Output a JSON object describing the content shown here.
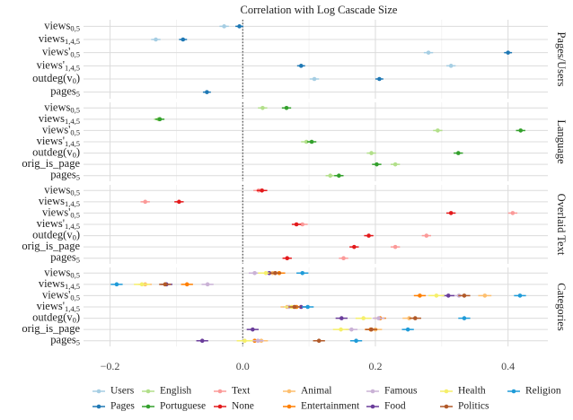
{
  "chart_data": {
    "type": "dot",
    "title": "Correlation with Log Cascade Size",
    "xlim": [
      -0.24,
      0.46
    ],
    "xticks": [
      {
        "value": -0.2,
        "label": "−0.2"
      },
      {
        "value": 0,
        "label": "0.0"
      },
      0.2,
      0.4
    ],
    "xminor": [
      -0.1,
      0.1,
      0.3
    ],
    "vline": 0,
    "grid": true,
    "legend": "bottom",
    "facets": [
      {
        "title": "Pages/Users",
        "rows": [
          {
            "name": "views",
            "sub": "0,5"
          },
          {
            "name": "views",
            "sub": "1,4,5"
          },
          {
            "name": "views'",
            "sub": "0,5"
          },
          {
            "name": "views'",
            "sub": "1,4,5"
          },
          {
            "name": "outdeg(v",
            "sub": "0",
            "tail": ")"
          },
          {
            "name": "pages",
            "sub": "5"
          }
        ]
      },
      {
        "title": "Language",
        "rows": [
          {
            "name": "views",
            "sub": "0,5"
          },
          {
            "name": "views",
            "sub": "1,4,5"
          },
          {
            "name": "views'",
            "sub": "0,5"
          },
          {
            "name": "views'",
            "sub": "1,4,5"
          },
          {
            "name": "outdeg(v",
            "sub": "0",
            "tail": ")"
          },
          {
            "name": "orig_is_page"
          },
          {
            "name": "pages",
            "sub": "5"
          }
        ]
      },
      {
        "title": "Overlaid Text",
        "rows": [
          {
            "name": "views",
            "sub": "0,5"
          },
          {
            "name": "views",
            "sub": "1,4,5"
          },
          {
            "name": "views'",
            "sub": "0,5"
          },
          {
            "name": "views'",
            "sub": "1,4,5"
          },
          {
            "name": "outdeg(v",
            "sub": "0",
            "tail": ")"
          },
          {
            "name": "orig_is_page"
          },
          {
            "name": "pages",
            "sub": "5"
          }
        ]
      },
      {
        "title": "Categories",
        "rows": [
          {
            "name": "views",
            "sub": "0,5"
          },
          {
            "name": "views",
            "sub": "1,4,5"
          },
          {
            "name": "views'",
            "sub": "0,5"
          },
          {
            "name": "views'",
            "sub": "1,4,5"
          },
          {
            "name": "outdeg(v",
            "sub": "0",
            "tail": ")"
          },
          {
            "name": "orig_is_page"
          },
          {
            "name": "pages",
            "sub": "5"
          }
        ]
      }
    ],
    "series": [
      {
        "name": "Users",
        "color": "#a6cee3",
        "facet": 0,
        "values": [
          -0.028,
          -0.131,
          0.28,
          0.314,
          0.108,
          null
        ],
        "errors": [
          0.007,
          0.007,
          0.007,
          0.007,
          0.007,
          null
        ]
      },
      {
        "name": "Pages",
        "color": "#1f78b4",
        "facet": 0,
        "values": [
          -0.005,
          -0.09,
          0.4,
          0.088,
          0.206,
          -0.054
        ],
        "errors": [
          0.006,
          0.006,
          0.006,
          0.006,
          0.006,
          0.006
        ]
      },
      {
        "name": "English",
        "color": "#b2df8a",
        "facet": 1,
        "values": [
          0.03,
          -0.127,
          0.294,
          0.096,
          0.194,
          0.23,
          0.132
        ],
        "errors": [
          0.007,
          0.007,
          0.007,
          0.008,
          0.007,
          0.007,
          0.007
        ]
      },
      {
        "name": "Portuguese",
        "color": "#33a02c",
        "facet": 1,
        "values": [
          0.066,
          -0.125,
          0.419,
          0.104,
          0.325,
          0.202,
          0.145
        ],
        "errors": [
          0.007,
          0.007,
          0.007,
          0.007,
          0.007,
          0.007,
          0.007
        ]
      },
      {
        "name": "Text",
        "color": "#fb9a99",
        "facet": 2,
        "values": [
          0.024,
          -0.147,
          0.407,
          0.09,
          0.277,
          0.23,
          0.152
        ],
        "errors": [
          0.008,
          0.007,
          0.007,
          0.008,
          0.007,
          0.007,
          0.007
        ]
      },
      {
        "name": "None",
        "color": "#e31a1c",
        "facet": 2,
        "values": [
          0.029,
          -0.096,
          0.314,
          0.081,
          0.19,
          0.168,
          0.067
        ],
        "errors": [
          0.008,
          0.007,
          0.007,
          0.007,
          0.007,
          0.007,
          0.007
        ]
      },
      {
        "name": "Animal",
        "color": "#fdbf6f",
        "facet": 3,
        "values": [
          0.045,
          -0.147,
          0.365,
          0.067,
          0.251,
          0.2,
          0.028
        ],
        "errors": [
          0.01,
          0.01,
          0.01,
          0.01,
          0.01,
          0.01,
          0.01
        ]
      },
      {
        "name": "Entertainment",
        "color": "#ff7f00",
        "facet": 3,
        "values": [
          0.055,
          -0.084,
          0.267,
          0.081,
          0.207,
          0.193,
          0.018
        ],
        "errors": [
          0.009,
          0.009,
          0.009,
          0.009,
          0.009,
          0.009,
          0.009
        ]
      },
      {
        "name": "Famous",
        "color": "#cab2d6",
        "facet": 3,
        "values": [
          0.018,
          -0.053,
          0.326,
          0.07,
          0.205,
          0.164,
          0.023
        ],
        "errors": [
          0.009,
          0.009,
          0.009,
          0.009,
          0.009,
          0.009,
          0.009
        ]
      },
      {
        "name": "Food",
        "color": "#6a3d9a",
        "facet": 3,
        "values": [
          0.04,
          -0.115,
          0.31,
          0.088,
          0.149,
          0.015,
          -0.061
        ],
        "errors": [
          0.009,
          0.009,
          0.009,
          0.009,
          0.009,
          0.009,
          0.009
        ]
      },
      {
        "name": "Health",
        "color": "#f5ef6a",
        "facet": 3,
        "values": [
          0.035,
          -0.152,
          0.292,
          0.074,
          0.182,
          0.148,
          0.003
        ],
        "errors": [
          0.012,
          0.012,
          0.012,
          0.012,
          0.012,
          0.012,
          0.012
        ]
      },
      {
        "name": "Politics",
        "color": "#b15928",
        "facet": 3,
        "values": [
          0.049,
          -0.117,
          0.334,
          0.078,
          0.26,
          0.194,
          0.115
        ],
        "errors": [
          0.009,
          0.009,
          0.009,
          0.009,
          0.009,
          0.009,
          0.009
        ]
      },
      {
        "name": "Religion",
        "color": "#1f9bd8",
        "facet": 3,
        "values": [
          0.09,
          -0.19,
          0.418,
          0.098,
          0.334,
          0.249,
          0.171
        ],
        "errors": [
          0.009,
          0.009,
          0.009,
          0.009,
          0.009,
          0.009,
          0.009
        ]
      }
    ]
  }
}
